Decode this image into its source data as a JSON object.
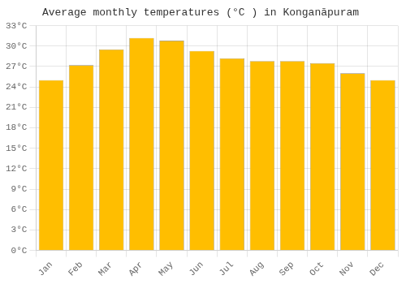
{
  "chart_data": {
    "type": "bar",
    "title": "Average monthly temperatures (°C ) in Konganāpuram",
    "categories": [
      "Jan",
      "Feb",
      "Mar",
      "Apr",
      "May",
      "Jun",
      "Jul",
      "Aug",
      "Sep",
      "Oct",
      "Nov",
      "Dec"
    ],
    "values": [
      25.0,
      27.2,
      29.5,
      31.2,
      30.8,
      29.3,
      28.2,
      27.8,
      27.8,
      27.5,
      26.0,
      25.0
    ],
    "color": "#FFBE00",
    "ylim": [
      0,
      33
    ],
    "yticks": [
      {
        "value": 0,
        "label": "0°C"
      },
      {
        "value": 3,
        "label": "3°C"
      },
      {
        "value": 6,
        "label": "6°C"
      },
      {
        "value": 9,
        "label": "9°C"
      },
      {
        "value": 12,
        "label": "12°C"
      },
      {
        "value": 15,
        "label": "15°C"
      },
      {
        "value": 18,
        "label": "18°C"
      },
      {
        "value": 21,
        "label": "21°C"
      },
      {
        "value": 24,
        "label": "24°C"
      },
      {
        "value": 27,
        "label": "27°C"
      },
      {
        "value": 30,
        "label": "30°C"
      },
      {
        "value": 33,
        "label": "33°C"
      }
    ],
    "grid": true
  }
}
